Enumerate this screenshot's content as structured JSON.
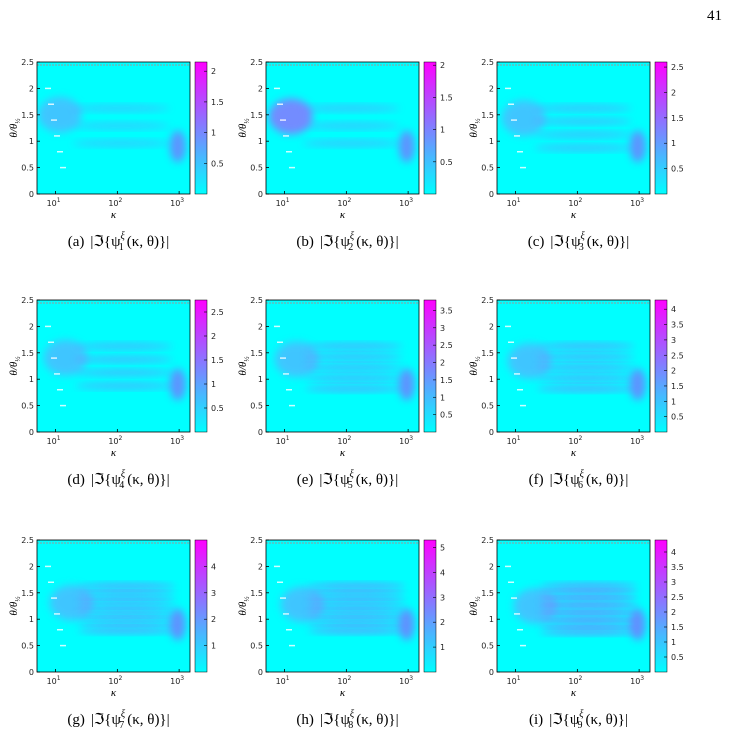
{
  "page_number": "41",
  "axes": {
    "y_label": {
      "main": "θ/θ",
      "sub": "½"
    },
    "x_label": "κ",
    "ylim": [
      0,
      2.5
    ],
    "yticks": [
      0,
      0.5,
      1,
      1.5,
      2,
      2.5
    ],
    "xlim": [
      5,
      1500
    ],
    "xticks": [
      {
        "value": 10,
        "label": "10",
        "exp": "1"
      },
      {
        "value": 100,
        "label": "10",
        "exp": "2"
      },
      {
        "value": 1000,
        "label": "10",
        "exp": "3"
      }
    ]
  },
  "panels": [
    {
      "clim": [
        0,
        2.15
      ],
      "cticks": [
        0.5,
        1,
        1.5,
        2
      ],
      "caption": {
        "tag": "(a)",
        "prefix": "|ℑ{ψ",
        "sup": "ξ",
        "sub": "1",
        "suffix": "(κ, θ)}|"
      }
    },
    {
      "clim": [
        0,
        2.05
      ],
      "cticks": [
        0.5,
        1,
        1.5,
        2
      ],
      "caption": {
        "tag": "(b)",
        "prefix": "|ℑ{ψ",
        "sup": "ξ",
        "sub": "2",
        "suffix": "(κ, θ)}|"
      }
    },
    {
      "clim": [
        0,
        2.6
      ],
      "cticks": [
        0.5,
        1,
        1.5,
        2,
        2.5
      ],
      "caption": {
        "tag": "(c)",
        "prefix": "|ℑ{ψ",
        "sup": "ξ",
        "sub": "3",
        "suffix": "(κ, θ)}|"
      }
    },
    {
      "clim": [
        0,
        2.75
      ],
      "cticks": [
        0.5,
        1,
        1.5,
        2,
        2.5
      ],
      "caption": {
        "tag": "(d)",
        "prefix": "|ℑ{ψ",
        "sup": "ξ",
        "sub": "4",
        "suffix": "(κ, θ)}|"
      }
    },
    {
      "clim": [
        0,
        3.8
      ],
      "cticks": [
        0.5,
        1,
        1.5,
        2,
        2.5,
        3,
        3.5
      ],
      "caption": {
        "tag": "(e)",
        "prefix": "|ℑ{ψ",
        "sup": "ξ",
        "sub": "5",
        "suffix": "(κ, θ)}|"
      }
    },
    {
      "clim": [
        0,
        4.3
      ],
      "cticks": [
        0.5,
        1,
        1.5,
        2,
        2.5,
        3,
        3.5,
        4
      ],
      "caption": {
        "tag": "(f)",
        "prefix": "|ℑ{ψ",
        "sup": "ξ",
        "sub": "6",
        "suffix": "(κ, θ)}|"
      }
    },
    {
      "clim": [
        0,
        5.0
      ],
      "cticks": [
        1,
        2,
        3,
        4
      ],
      "caption": {
        "tag": "(g)",
        "prefix": "|ℑ{ψ",
        "sup": "ξ",
        "sub": "7",
        "suffix": "(κ, θ)}|"
      }
    },
    {
      "clim": [
        0,
        5.3
      ],
      "cticks": [
        1,
        2,
        3,
        4,
        5
      ],
      "caption": {
        "tag": "(h)",
        "prefix": "|ℑ{ψ",
        "sup": "ξ",
        "sub": "8",
        "suffix": "(κ, θ)}|"
      }
    },
    {
      "clim": [
        0,
        4.4
      ],
      "cticks": [
        0.5,
        1,
        1.5,
        2,
        2.5,
        3,
        3.5,
        4
      ],
      "caption": {
        "tag": "(i)",
        "prefix": "|ℑ{ψ",
        "sup": "ξ",
        "sub": "9",
        "suffix": "(κ, θ)}|"
      }
    }
  ]
}
